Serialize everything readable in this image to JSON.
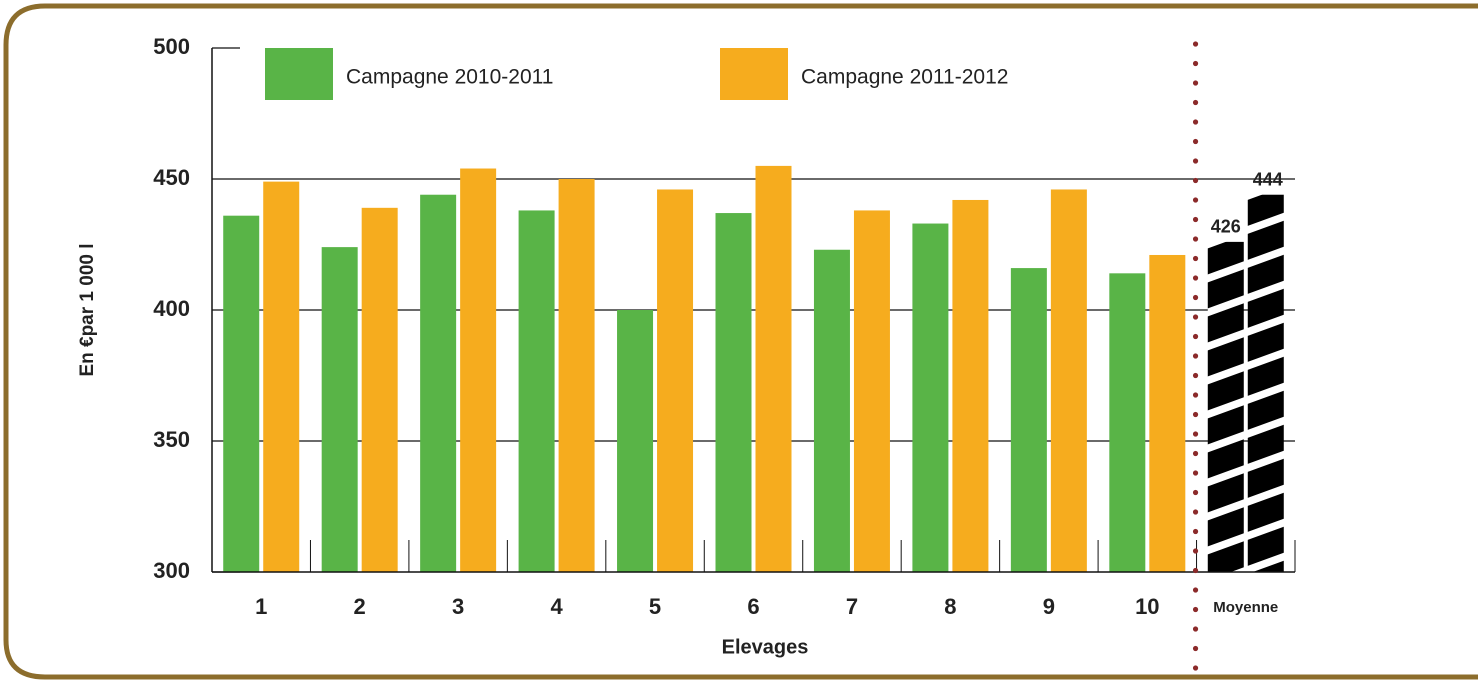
{
  "chart_data": {
    "type": "bar",
    "categories": [
      "1",
      "2",
      "3",
      "4",
      "5",
      "6",
      "7",
      "8",
      "9",
      "10",
      "Moyenne"
    ],
    "series": [
      {
        "name": "Campagne 2010-2011",
        "color": "#59b447",
        "values": [
          436,
          424,
          444,
          438,
          400,
          437,
          423,
          433,
          416,
          414,
          426
        ]
      },
      {
        "name": "Campagne 2011-2012",
        "color": "#f6ac1e",
        "values": [
          449,
          439,
          454,
          450,
          446,
          455,
          438,
          442,
          446,
          421,
          444
        ]
      }
    ],
    "highlight": "Moyenne",
    "ylim": [
      300,
      500
    ],
    "yticks": [
      300,
      350,
      400,
      450,
      500
    ],
    "grid": true,
    "ylabel": "En €par 1 000 l",
    "xlabel": "Elevages",
    "separator_color": "#8b2a2a"
  }
}
